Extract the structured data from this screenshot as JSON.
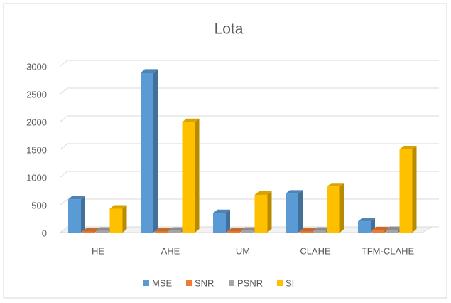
{
  "chart_data": {
    "type": "bar",
    "title": "Lota",
    "categories": [
      "HE",
      "AHE",
      "UM",
      "CLAHE",
      "TFM-CLAHE"
    ],
    "series": [
      {
        "name": "MSE",
        "color": "#5b9bd5",
        "values": [
          600,
          2880,
          350,
          700,
          200
        ]
      },
      {
        "name": "SNR",
        "color": "#ed7d31",
        "values": [
          15,
          15,
          15,
          15,
          40
        ]
      },
      {
        "name": "PSNR",
        "color": "#a5a5a5",
        "values": [
          30,
          30,
          30,
          30,
          45
        ]
      },
      {
        "name": "SI",
        "color": "#ffc000",
        "values": [
          430,
          1990,
          680,
          830,
          1500
        ]
      }
    ],
    "ylim": [
      0,
      3000
    ],
    "yticks": [
      0,
      500,
      1000,
      1500,
      2000,
      2500,
      3000
    ],
    "grid": true,
    "legend": "bottom"
  }
}
